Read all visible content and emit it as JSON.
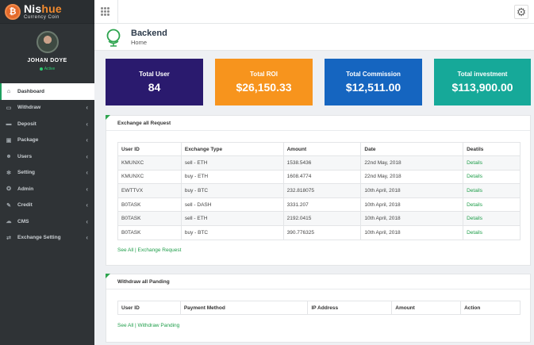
{
  "brand": {
    "name_a": "Nis",
    "name_b": "hue",
    "tagline": "Currency Coin",
    "logo": "coin-icon"
  },
  "profile": {
    "name": "JOHAN DOYE",
    "status": "Active"
  },
  "menu": [
    {
      "label": "Dashboard",
      "icon": "home-icon",
      "active": true
    },
    {
      "label": "Withdraw",
      "icon": "wallet-icon"
    },
    {
      "label": "Deposit",
      "icon": "card-icon"
    },
    {
      "label": "Package",
      "icon": "box-icon"
    },
    {
      "label": "Users",
      "icon": "users-icon"
    },
    {
      "label": "Setting",
      "icon": "gear-icon"
    },
    {
      "label": "Admin",
      "icon": "admin-icon"
    },
    {
      "label": "Credit",
      "icon": "credit-icon"
    },
    {
      "label": "CMS",
      "icon": "cms-icon"
    },
    {
      "label": "Exchange Setting",
      "icon": "exchange-icon"
    }
  ],
  "header": {
    "title": "Backend",
    "subtitle": "Home"
  },
  "cards": [
    {
      "label": "Total User",
      "value": "84",
      "color": "#2a1a6e"
    },
    {
      "label": "Total ROI",
      "value": "$26,150.33",
      "color": "#f7941d"
    },
    {
      "label": "Total Commission",
      "value": "$12,511.00",
      "color": "#1565c0"
    },
    {
      "label": "Total investment",
      "value": "$113,900.00",
      "color": "#16a999"
    }
  ],
  "exchange": {
    "title": "Exchange all Request",
    "columns": [
      "User ID",
      "Exchange Type",
      "Amount",
      "Date",
      "Deatils"
    ],
    "rows": [
      [
        "KMUNXC",
        "sell - ETH",
        "1538.5436",
        "22nd May, 2018",
        "Details"
      ],
      [
        "KMUNXC",
        "buy - ETH",
        "1608.4774",
        "22nd May, 2018",
        "Details"
      ],
      [
        "EWTTVX",
        "buy - BTC",
        "232.818075",
        "10th April, 2018",
        "Details"
      ],
      [
        "B0TASK",
        "sell - DASH",
        "3331.207",
        "10th April, 2018",
        "Details"
      ],
      [
        "B0TASK",
        "sell - ETH",
        "2192.0415",
        "10th April, 2018",
        "Details"
      ],
      [
        "B0TASK",
        "buy - BTC",
        "390.776325",
        "10th April, 2018",
        "Details"
      ]
    ],
    "link": "See All | Exchange Request"
  },
  "withdraw": {
    "title": "Withdraw all Panding",
    "columns": [
      "User ID",
      "Payment Method",
      "IP Address",
      "Amount",
      "Action"
    ],
    "link": "See All | Withdraw Panding"
  }
}
